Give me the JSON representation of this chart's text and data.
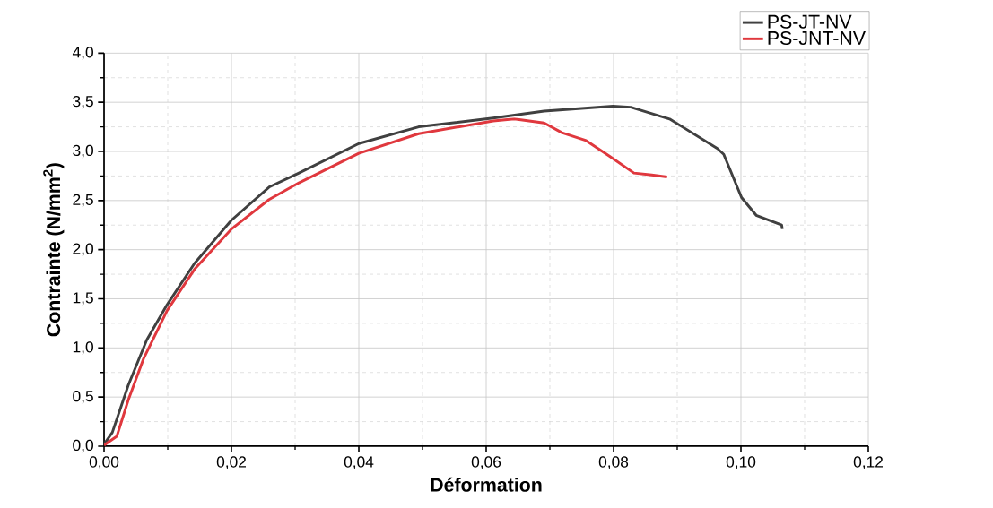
{
  "chart_data": {
    "type": "line",
    "xlabel": "Déformation",
    "ylabel": "Contrainte (N/mm$^{2}$)",
    "xlim": [
      0,
      0.12
    ],
    "ylim": [
      0,
      4
    ],
    "xticks": [
      {
        "value": 0,
        "label": "0,00"
      },
      {
        "value": 0.02,
        "label": "0,02"
      },
      {
        "value": 0.04,
        "label": "0,04"
      },
      {
        "value": 0.06,
        "label": "0,06"
      },
      {
        "value": 0.08,
        "label": "0,08"
      },
      {
        "value": 0.1,
        "label": "0,10"
      },
      {
        "value": 0.12,
        "label": "0,12"
      }
    ],
    "yticks": [
      {
        "value": 0,
        "label": "0,0"
      },
      {
        "value": 0.5,
        "label": "0,5"
      },
      {
        "value": 1,
        "label": "1,0"
      },
      {
        "value": 1.5,
        "label": "1,5"
      },
      {
        "value": 2,
        "label": "2,0"
      },
      {
        "value": 2.5,
        "label": "2,5"
      },
      {
        "value": 3,
        "label": "3,0"
      },
      {
        "value": 3.5,
        "label": "3,5"
      },
      {
        "value": 4,
        "label": "4,0"
      }
    ],
    "grid": true,
    "legend": "top right",
    "line_style": "solid",
    "marker": "none",
    "series": [
      {
        "name": "PS-JT-NV",
        "color": "#404040",
        "x": [
          0,
          0.0013,
          0.0038,
          0.0067,
          0.0099,
          0.0142,
          0.02,
          0.026,
          0.0306,
          0.04,
          0.0494,
          0.0611,
          0.0691,
          0.0799,
          0.0827,
          0.0888,
          0.0963,
          0.0973,
          0.1001,
          0.1024,
          0.1064,
          0.1065
        ],
        "values": [
          0.02,
          0.14,
          0.62,
          1.08,
          1.44,
          1.86,
          2.3,
          2.64,
          2.78,
          3.08,
          3.25,
          3.34,
          3.41,
          3.46,
          3.45,
          3.33,
          3.03,
          2.97,
          2.53,
          2.35,
          2.25,
          2.21
        ]
      },
      {
        "name": "PS-JNT-NV",
        "color": "#e0383e",
        "x": [
          0,
          0.002,
          0.0038,
          0.0062,
          0.0099,
          0.0142,
          0.02,
          0.0259,
          0.0306,
          0.04,
          0.0494,
          0.0611,
          0.0644,
          0.0691,
          0.0719,
          0.0757,
          0.0794,
          0.0832,
          0.086,
          0.0884
        ],
        "values": [
          0.01,
          0.1,
          0.47,
          0.89,
          1.38,
          1.8,
          2.21,
          2.51,
          2.68,
          2.98,
          3.18,
          3.31,
          3.33,
          3.29,
          3.19,
          3.11,
          2.95,
          2.78,
          2.76,
          2.74
        ]
      }
    ]
  }
}
